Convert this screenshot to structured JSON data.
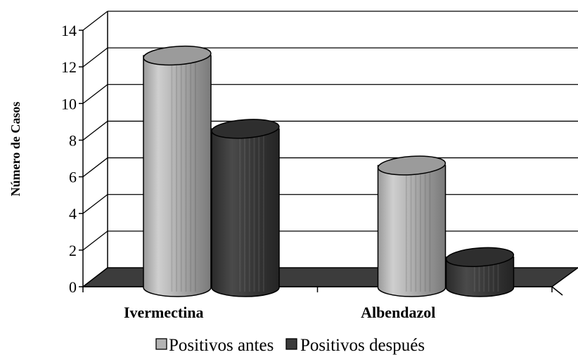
{
  "chart_data": {
    "type": "bar",
    "title": "",
    "xlabel": "",
    "ylabel": "Número de Casos",
    "ylim": [
      0,
      14
    ],
    "yticks": [
      "0",
      "2",
      "4",
      "6",
      "8",
      "10",
      "12",
      "14"
    ],
    "categories": [
      "Ivermectina",
      "Albendazol"
    ],
    "series": [
      {
        "name": "Positivos antes",
        "values": [
          13,
          7
        ],
        "color": "#b4b4b4"
      },
      {
        "name": "Positivos después",
        "values": [
          9,
          2
        ],
        "color": "#3a3a3a"
      }
    ],
    "grid": true,
    "legend": "bottom",
    "style": "3d-cylinder",
    "floor_color": "#3c3c3c"
  }
}
